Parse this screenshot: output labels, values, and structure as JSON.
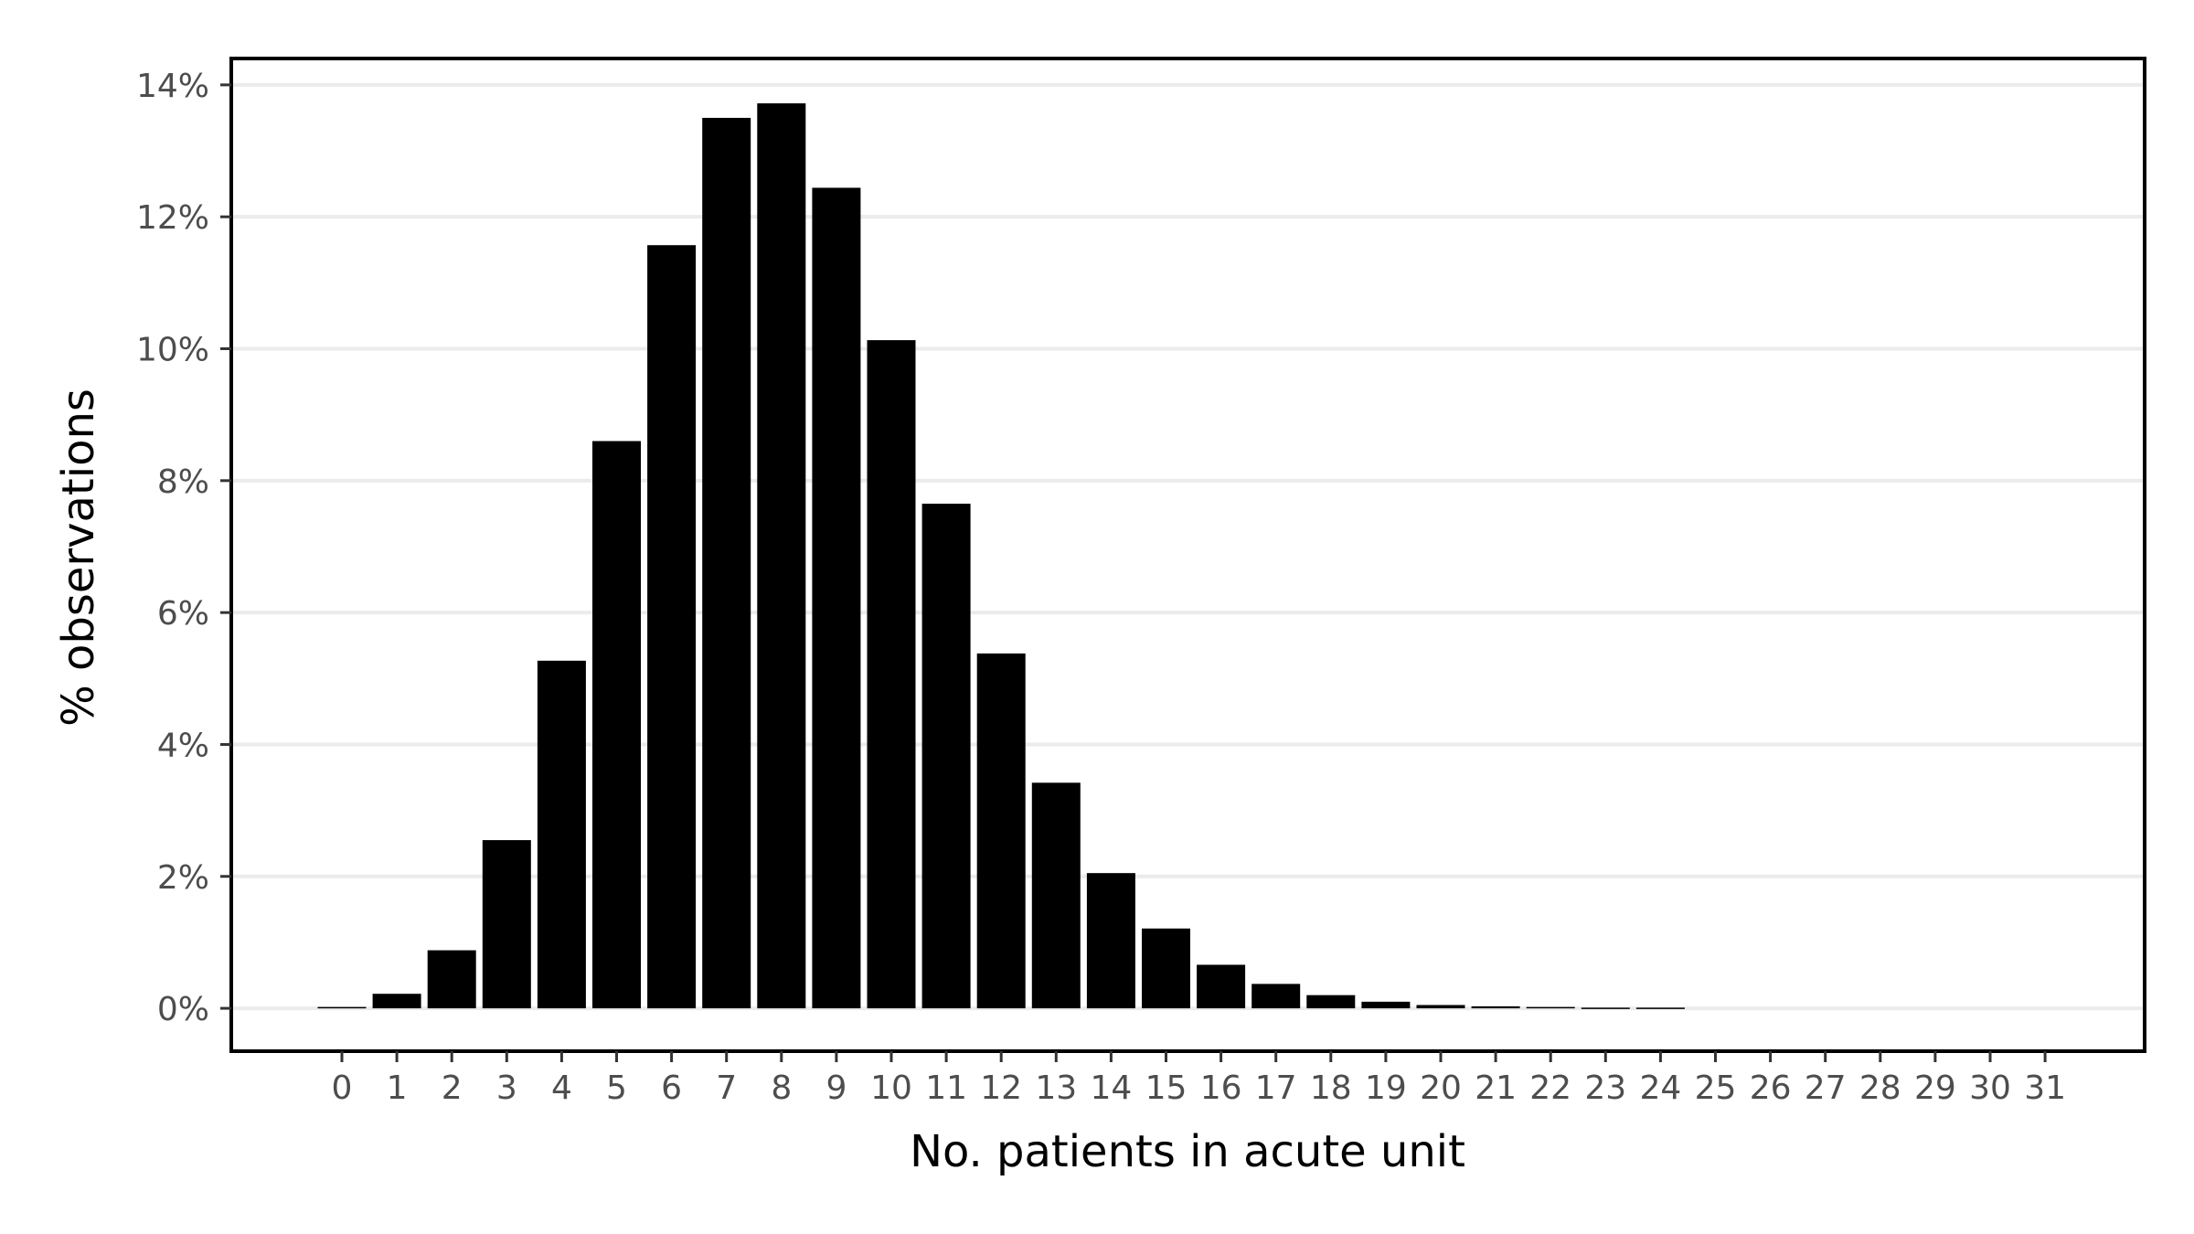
{
  "chart_data": {
    "type": "bar",
    "title": "",
    "xlabel": "No. patients in acute unit",
    "ylabel": "% observations",
    "categories": [
      "0",
      "1",
      "2",
      "3",
      "4",
      "5",
      "6",
      "7",
      "8",
      "9",
      "10",
      "11",
      "12",
      "13",
      "14",
      "15",
      "16",
      "17",
      "18",
      "19",
      "20",
      "21",
      "22",
      "23",
      "24",
      "25",
      "26",
      "27",
      "28",
      "29",
      "30",
      "31"
    ],
    "values": [
      0.02,
      0.22,
      0.88,
      2.55,
      5.27,
      8.6,
      11.57,
      13.5,
      13.72,
      12.44,
      10.13,
      7.65,
      5.38,
      3.42,
      2.05,
      1.21,
      0.66,
      0.37,
      0.2,
      0.1,
      0.05,
      0.03,
      0.02,
      0.01,
      0.01,
      0,
      0,
      0,
      0,
      0,
      0,
      0
    ],
    "ylim": [
      -0.65,
      14.4
    ],
    "yticks": [
      0,
      2,
      4,
      6,
      8,
      10,
      12,
      14
    ],
    "ytick_labels": [
      "0%",
      "2%",
      "4%",
      "6%",
      "8%",
      "10%",
      "12%",
      "14%"
    ],
    "grid": "horizontal",
    "legend": "none",
    "bar_color": "#000000",
    "grid_color": "#ebebeb",
    "frame_color": "#000000"
  }
}
